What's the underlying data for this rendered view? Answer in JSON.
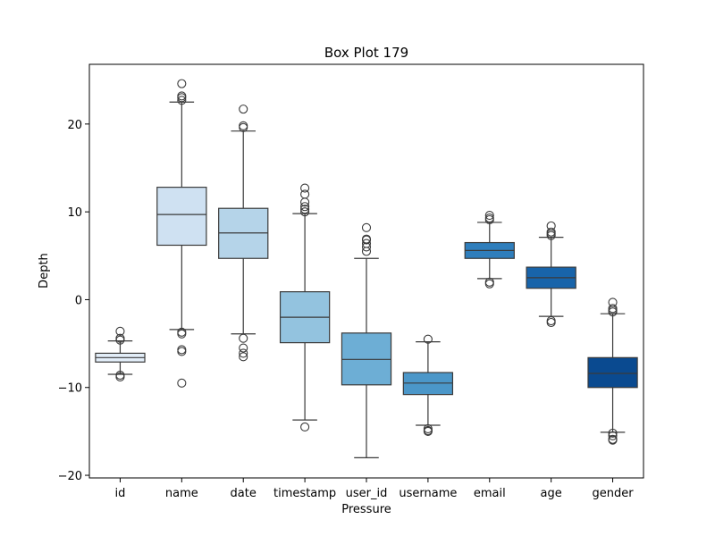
{
  "chart_data": {
    "type": "box",
    "title": "Box Plot 179",
    "xlabel": "Pressure",
    "ylabel": "Depth",
    "ylim": [
      -20.3,
      26.8
    ],
    "yticks": [
      -20,
      -10,
      0,
      10,
      20
    ],
    "grid": false,
    "legend": "none",
    "categories": [
      "id",
      "name",
      "date",
      "timestamp",
      "user_id",
      "username",
      "email",
      "age",
      "gender"
    ],
    "colors": [
      "#e3eef9",
      "#cfe1f2",
      "#b5d4e9",
      "#93c3df",
      "#6daed5",
      "#4b97c9",
      "#2f7ebc",
      "#1864aa",
      "#0a4a90"
    ],
    "boxes": [
      {
        "category": "id",
        "whisker_low": -8.5,
        "q1": -7.1,
        "median": -6.6,
        "q3": -6.1,
        "whisker_high": -4.7,
        "outliers": [
          -3.6,
          -4.4,
          -4.6,
          -8.6,
          -8.8
        ]
      },
      {
        "category": "name",
        "whisker_low": -3.4,
        "q1": 6.2,
        "median": 9.7,
        "q3": 12.8,
        "whisker_high": 22.5,
        "outliers": [
          -3.7,
          -3.9,
          -5.7,
          -5.9,
          -9.5,
          22.7,
          23.0,
          23.2,
          24.6
        ]
      },
      {
        "category": "date",
        "whisker_low": -3.9,
        "q1": 4.7,
        "median": 7.6,
        "q3": 10.4,
        "whisker_high": 19.2,
        "outliers": [
          -4.4,
          -5.5,
          -6.1,
          -6.5,
          19.6,
          19.8,
          21.7
        ]
      },
      {
        "category": "timestamp",
        "whisker_low": -13.7,
        "q1": -4.9,
        "median": -2.0,
        "q3": 0.9,
        "whisker_high": 9.8,
        "outliers": [
          -14.5,
          10.0,
          10.3,
          10.6,
          11.1,
          12.0,
          12.7
        ]
      },
      {
        "category": "user_id",
        "whisker_low": -18.0,
        "q1": -9.7,
        "median": -6.8,
        "q3": -3.8,
        "whisker_high": 4.7,
        "outliers": [
          5.5,
          6.0,
          6.4,
          6.8,
          6.9,
          8.2
        ]
      },
      {
        "category": "username",
        "whisker_low": -14.3,
        "q1": -10.8,
        "median": -9.5,
        "q3": -8.3,
        "whisker_high": -4.8,
        "outliers": [
          -4.5,
          -14.7,
          -14.9,
          -15.0
        ]
      },
      {
        "category": "email",
        "whisker_low": 2.4,
        "q1": 4.7,
        "median": 5.6,
        "q3": 6.5,
        "whisker_high": 8.8,
        "outliers": [
          1.8,
          2.0,
          9.1,
          9.3,
          9.6
        ]
      },
      {
        "category": "age",
        "whisker_low": -1.9,
        "q1": 1.3,
        "median": 2.5,
        "q3": 3.7,
        "whisker_high": 7.1,
        "outliers": [
          -2.4,
          -2.6,
          7.3,
          7.5,
          7.7,
          8.4
        ]
      },
      {
        "category": "gender",
        "whisker_low": -15.1,
        "q1": -10.0,
        "median": -8.4,
        "q3": -6.6,
        "whisker_high": -1.6,
        "outliers": [
          -0.3,
          -1.0,
          -1.2,
          -1.4,
          -15.2,
          -15.5,
          -15.9,
          -16.0
        ]
      }
    ]
  }
}
